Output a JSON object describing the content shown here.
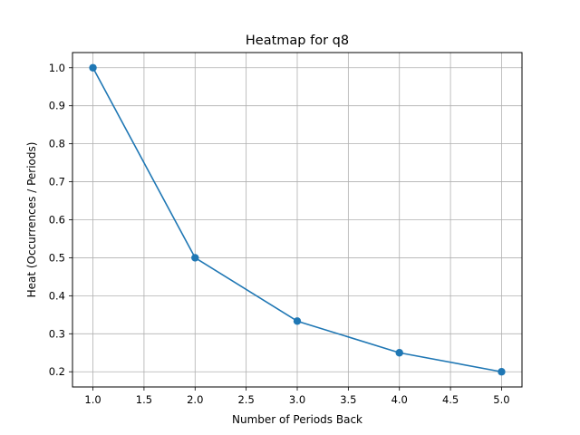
{
  "chart_data": {
    "type": "line",
    "title": "Heatmap for q8",
    "xlabel": "Number of Periods Back",
    "ylabel": "Heat (Occurrences / Periods)",
    "x": [
      1,
      2,
      3,
      4,
      5
    ],
    "series": [
      {
        "values": [
          1.0,
          0.5,
          0.3333,
          0.25,
          0.2
        ],
        "color": "#1f77b4",
        "marker": "circle"
      }
    ],
    "xlim": [
      0.8,
      5.2
    ],
    "ylim": [
      0.16,
      1.04
    ],
    "x_ticks": [
      1.0,
      1.5,
      2.0,
      2.5,
      3.0,
      3.5,
      4.0,
      4.5,
      5.0
    ],
    "x_tick_labels": [
      "1.0",
      "1.5",
      "2.0",
      "2.5",
      "3.0",
      "3.5",
      "4.0",
      "4.5",
      "5.0"
    ],
    "y_ticks": [
      0.2,
      0.3,
      0.4,
      0.5,
      0.6,
      0.7,
      0.8,
      0.9,
      1.0
    ],
    "y_tick_labels": [
      "0.2",
      "0.3",
      "0.4",
      "0.5",
      "0.6",
      "0.7",
      "0.8",
      "0.9",
      "1.0"
    ],
    "grid": true,
    "legend": false
  }
}
